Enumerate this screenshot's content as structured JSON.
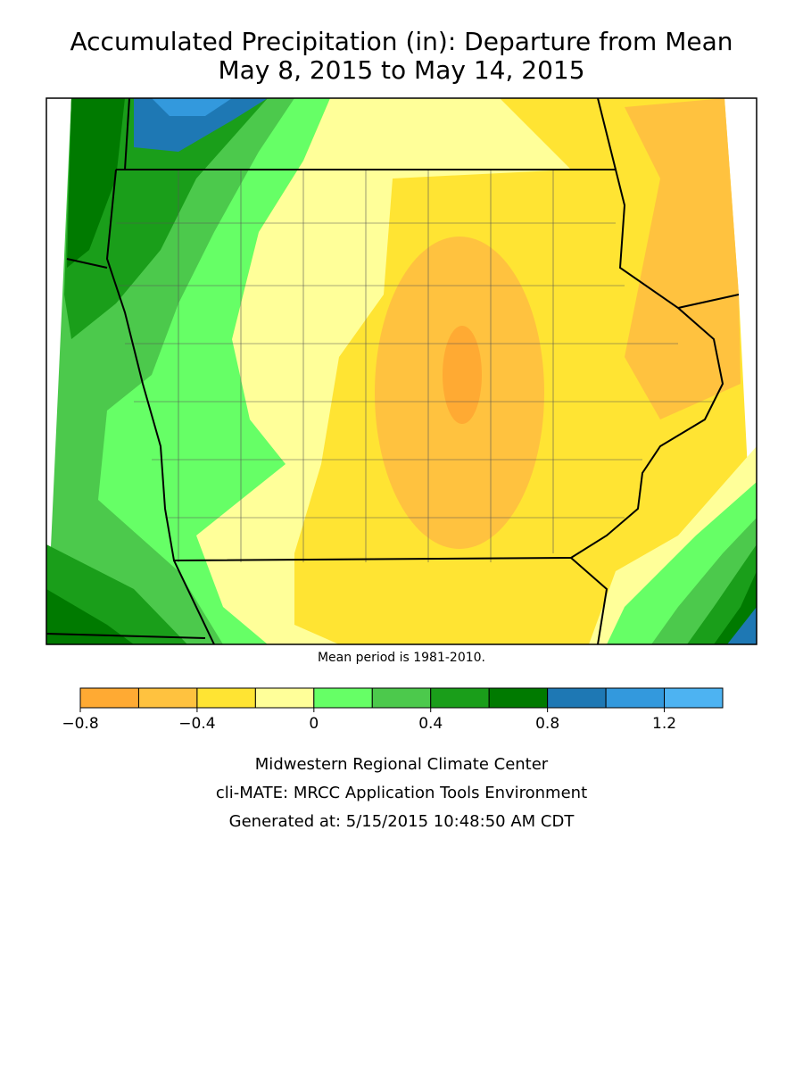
{
  "header": {
    "title": "Accumulated Precipitation (in): Departure from Mean",
    "subtitle": "May 8, 2015 to May 14, 2015"
  },
  "note": "Mean period is 1981-2010.",
  "colorbar": {
    "bounds": [
      -0.8,
      -0.6,
      -0.4,
      -0.2,
      0,
      0.2,
      0.4,
      0.6,
      0.8,
      1.0,
      1.2,
      1.4
    ],
    "colors": [
      "#ffaa33",
      "#ffc23f",
      "#ffe433",
      "#ffff99",
      "#66ff66",
      "#4cc94c",
      "#1a9e1a",
      "#007a00",
      "#1e78b4",
      "#3399dd",
      "#4db3f2"
    ],
    "ticks": [
      {
        "value": -0.8,
        "label": "−0.8"
      },
      {
        "value": -0.4,
        "label": "−0.4"
      },
      0,
      0.4,
      0.8,
      1.2
    ]
  },
  "footer": [
    "Midwestern Regional Climate Center",
    "cli-MATE: MRCC Application Tools Environment",
    "Generated at: 5/15/2015 10:48:50 AM CDT"
  ]
}
